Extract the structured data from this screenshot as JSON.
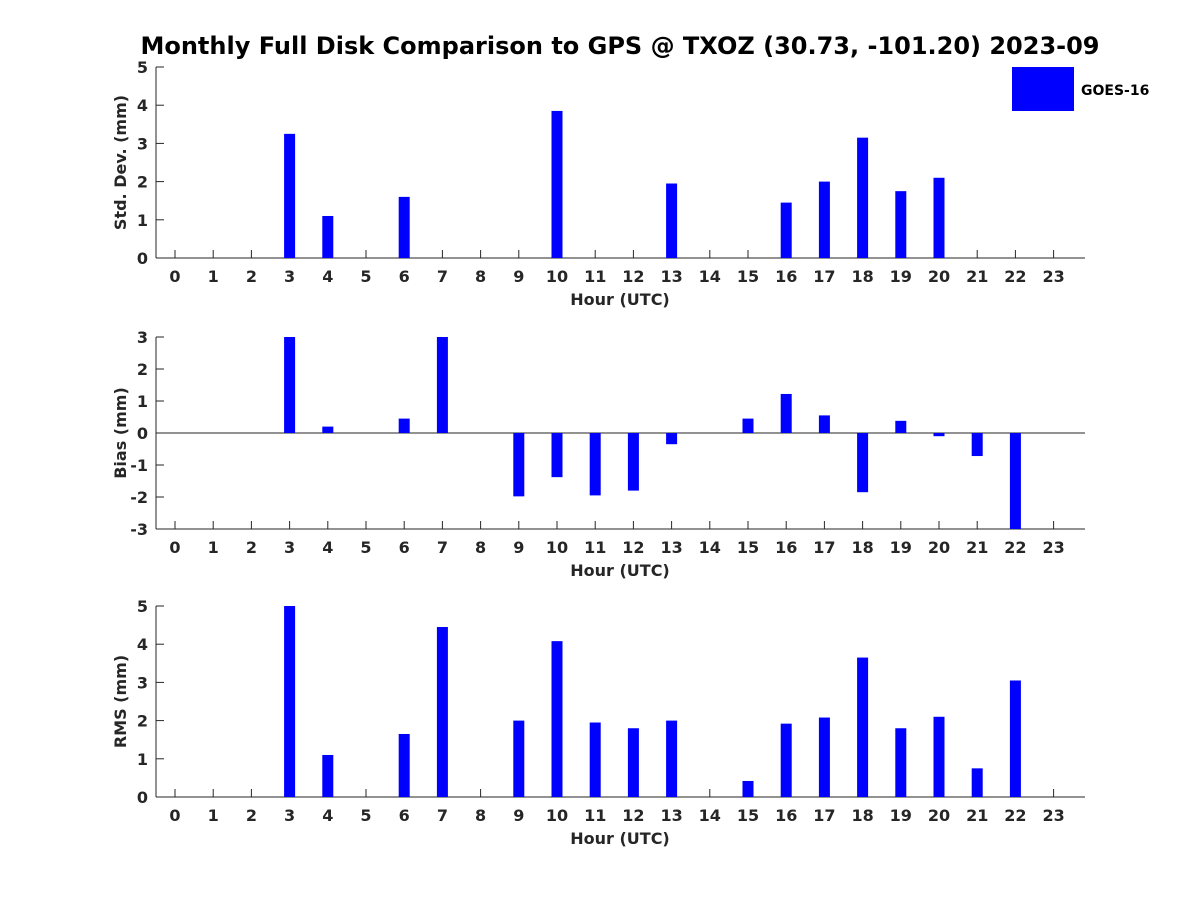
{
  "title": "Monthly Full Disk Comparison to GPS @ TXOZ (30.73, -101.20) 2023-09",
  "colors": {
    "bar": "#0000ff",
    "axis": "#262626",
    "background": "#ffffff"
  },
  "legend": {
    "label": "GOES-16",
    "placement": "top-right"
  },
  "chart_data": [
    {
      "type": "bar",
      "xlabel": "Hour (UTC)",
      "ylabel": "Std. Dev. (mm)",
      "ylim": [
        0,
        5
      ],
      "yticks": [
        0,
        1,
        2,
        3,
        4,
        5
      ],
      "categories": [
        "0",
        "1",
        "2",
        "3",
        "4",
        "5",
        "6",
        "7",
        "8",
        "9",
        "10",
        "11",
        "12",
        "13",
        "14",
        "15",
        "16",
        "17",
        "18",
        "19",
        "20",
        "21",
        "22",
        "23"
      ],
      "series": [
        {
          "name": "GOES-16",
          "values": [
            null,
            null,
            null,
            3.25,
            1.1,
            null,
            1.6,
            null,
            null,
            null,
            3.85,
            null,
            null,
            1.95,
            null,
            null,
            1.45,
            2.0,
            3.15,
            1.75,
            2.1,
            null,
            null,
            null
          ]
        }
      ]
    },
    {
      "type": "bar",
      "xlabel": "Hour (UTC)",
      "ylabel": "Bias (mm)",
      "ylim": [
        -3,
        3
      ],
      "yticks": [
        -3,
        -2,
        -1,
        0,
        1,
        2,
        3
      ],
      "categories": [
        "0",
        "1",
        "2",
        "3",
        "4",
        "5",
        "6",
        "7",
        "8",
        "9",
        "10",
        "11",
        "12",
        "13",
        "14",
        "15",
        "16",
        "17",
        "18",
        "19",
        "20",
        "21",
        "22",
        "23"
      ],
      "series": [
        {
          "name": "GOES-16",
          "values": [
            null,
            null,
            null,
            3.0,
            0.2,
            null,
            0.45,
            3.0,
            null,
            -1.98,
            -1.38,
            -1.95,
            -1.8,
            -0.35,
            null,
            0.45,
            1.22,
            0.55,
            -1.85,
            0.38,
            -0.1,
            -0.72,
            -3.0,
            null
          ]
        }
      ]
    },
    {
      "type": "bar",
      "xlabel": "Hour (UTC)",
      "ylabel": "RMS (mm)",
      "ylim": [
        0,
        5
      ],
      "yticks": [
        0,
        1,
        2,
        3,
        4,
        5
      ],
      "categories": [
        "0",
        "1",
        "2",
        "3",
        "4",
        "5",
        "6",
        "7",
        "8",
        "9",
        "10",
        "11",
        "12",
        "13",
        "14",
        "15",
        "16",
        "17",
        "18",
        "19",
        "20",
        "21",
        "22",
        "23"
      ],
      "series": [
        {
          "name": "GOES-16",
          "values": [
            null,
            null,
            null,
            5.0,
            1.1,
            null,
            1.65,
            4.45,
            null,
            2.0,
            4.08,
            1.95,
            1.8,
            2.0,
            null,
            0.42,
            1.92,
            2.08,
            3.65,
            1.8,
            2.1,
            0.75,
            3.05,
            null
          ]
        }
      ]
    }
  ]
}
